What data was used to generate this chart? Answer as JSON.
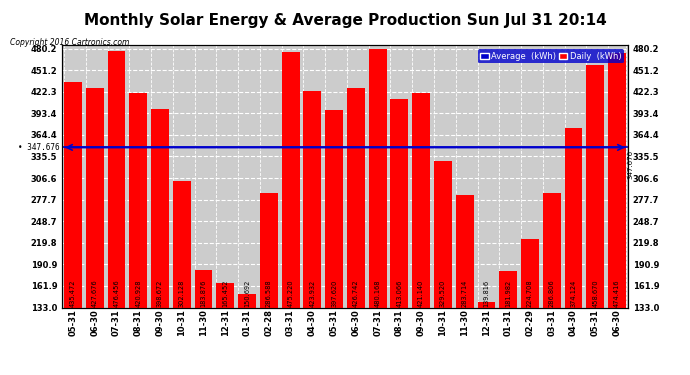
{
  "title": "Monthly Solar Energy & Average Production Sun Jul 31 20:14",
  "copyright": "Copyright 2016 Cartronics.com",
  "categories": [
    "05-31",
    "06-30",
    "07-31",
    "08-31",
    "09-30",
    "10-31",
    "11-30",
    "12-31",
    "01-31",
    "02-28",
    "03-31",
    "04-30",
    "05-31",
    "06-30",
    "07-31",
    "08-31",
    "09-30",
    "10-31",
    "11-30",
    "12-31",
    "01-31",
    "02-29",
    "03-31",
    "04-30",
    "05-31",
    "06-30"
  ],
  "values": [
    435.472,
    427.676,
    476.456,
    420.928,
    398.672,
    302.128,
    183.876,
    165.452,
    150.692,
    286.588,
    475.22,
    423.932,
    397.62,
    426.742,
    480.168,
    413.066,
    421.14,
    329.52,
    283.714,
    139.816,
    181.982,
    224.708,
    286.806,
    374.124,
    458.67,
    474.416
  ],
  "value_labels": [
    "435.472",
    "427.676",
    "476.456",
    "420.928",
    "398.672",
    "302.128",
    "183.876",
    "165.452",
    "150.692",
    "286.588",
    "475.220",
    "423.932",
    "397.620",
    "426.742",
    "480.168",
    "413.066",
    "421.140",
    "329.520",
    "283.714",
    "139.816",
    "181.982",
    "224.708",
    "286.806",
    "374.124",
    "458.670",
    "474.416"
  ],
  "average": 347.676,
  "bar_color": "#FF0000",
  "average_color": "#0000CC",
  "background_color": "#FFFFFF",
  "plot_bg_color": "#CCCCCC",
  "ylim_min": 133.0,
  "ylim_max": 485.0,
  "yticks": [
    133.0,
    161.9,
    190.9,
    219.8,
    248.7,
    277.7,
    306.6,
    335.5,
    364.4,
    393.4,
    422.3,
    451.2,
    480.2
  ],
  "legend_avg_label": "Average  (kWh)",
  "legend_daily_label": "Daily  (kWh)",
  "legend_avg_bg": "#0000CC",
  "legend_daily_bg": "#FF0000",
  "title_fontsize": 11,
  "tick_fontsize": 6,
  "bar_label_fontsize": 4.8
}
